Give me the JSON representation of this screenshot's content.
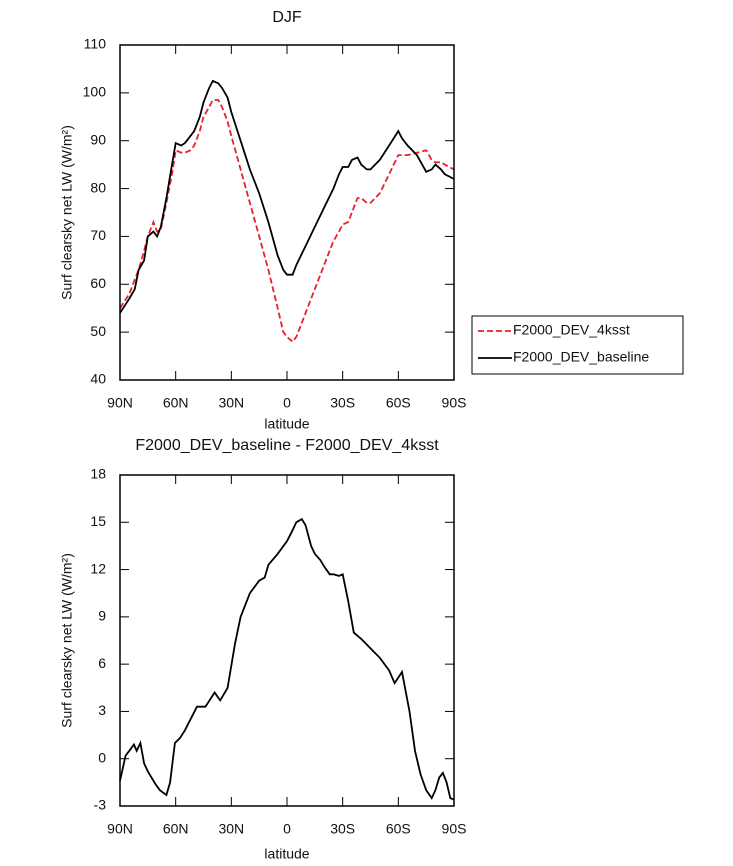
{
  "chart_data": [
    {
      "type": "line",
      "title": "DJF",
      "xlabel": "latitude",
      "ylabel": "Surf clearsky net LW (W/m²)",
      "x": [
        90,
        85,
        82,
        80,
        77,
        75,
        72,
        70,
        68,
        65,
        62,
        60,
        57,
        55,
        52,
        50,
        47,
        45,
        42,
        40,
        37,
        35,
        32,
        30,
        25,
        20,
        15,
        10,
        5,
        2,
        0,
        -3,
        -5,
        -10,
        -15,
        -20,
        -25,
        -28,
        -30,
        -33,
        -35,
        -38,
        -40,
        -43,
        -45,
        -50,
        -55,
        -60,
        -62,
        -65,
        -70,
        -75,
        -78,
        -80,
        -83,
        -85,
        -90
      ],
      "series": [
        {
          "name": "F2000_DEV_4ksst",
          "color": "#e8202a",
          "style": "dashed",
          "values": [
            55,
            58,
            61,
            63,
            67,
            70,
            73,
            71,
            71.5,
            77,
            83,
            88,
            87.5,
            87.5,
            88,
            89,
            92,
            95,
            97,
            98.5,
            98.5,
            97,
            94,
            91,
            84,
            77,
            70,
            63,
            55,
            50,
            49,
            48,
            49,
            54,
            59,
            64,
            69,
            71,
            72.5,
            73,
            75,
            78,
            78,
            77,
            77,
            79,
            83,
            87,
            87,
            87,
            87.5,
            88,
            86,
            85.5,
            85.5,
            85,
            84
          ]
        },
        {
          "name": "F2000_DEV_baseline",
          "color": "#000000",
          "style": "solid",
          "values": [
            54,
            57,
            59,
            63,
            65,
            70,
            71,
            70,
            72,
            78,
            85,
            89.5,
            89,
            89.5,
            91,
            92,
            95,
            98,
            101,
            102.5,
            102,
            101,
            99,
            96,
            90,
            84,
            79,
            73,
            66,
            63,
            62,
            62,
            64,
            68,
            72,
            76,
            80,
            83,
            84.5,
            84.5,
            86,
            86.5,
            85,
            84,
            84,
            86,
            89,
            92,
            90.5,
            89,
            87,
            83.5,
            84,
            85,
            84,
            83,
            82
          ]
        }
      ],
      "xlim": [
        90,
        -90
      ],
      "xticks": [
        {
          "value": 90,
          "label": "90N"
        },
        {
          "value": 60,
          "label": "60N"
        },
        {
          "value": 30,
          "label": "30N"
        },
        0,
        {
          "value": -30,
          "label": "30S"
        },
        {
          "value": -60,
          "label": "60S"
        },
        {
          "value": -90,
          "label": "90S"
        }
      ],
      "ylim": [
        40,
        110
      ],
      "yticks": [
        40,
        50,
        60,
        70,
        80,
        90,
        100,
        110
      ],
      "legend": "right"
    },
    {
      "type": "line",
      "title": "F2000_DEV_baseline - F2000_DEV_4ksst",
      "xlabel": "latitude",
      "ylabel": "Surf clearsky net LW (W/m²)",
      "x": [
        90,
        87,
        85,
        82.5,
        81,
        79,
        77,
        75,
        73,
        71,
        68.5,
        65,
        63,
        60.4,
        57.7,
        55,
        52,
        48.5,
        44,
        39,
        36,
        32,
        28,
        25,
        20,
        15,
        12,
        10,
        5,
        0,
        -3,
        -5,
        -8,
        -10,
        -13,
        -15,
        -18,
        -20,
        -23,
        -25,
        -28,
        -30,
        -33,
        -36,
        -40,
        -45,
        -50,
        -55,
        -58,
        -62,
        -66,
        -69,
        -72,
        -75,
        -78,
        -80,
        -82,
        -84,
        -86,
        -88,
        -90
      ],
      "values": [
        -1.4,
        0.2,
        0.5,
        0.9,
        0.5,
        1,
        -0.3,
        -0.8,
        -1.2,
        -1.6,
        -2,
        -2.3,
        -1.5,
        1,
        1.3,
        1.8,
        2.5,
        3.3,
        3.3,
        4.2,
        3.7,
        4.5,
        7.3,
        9,
        10.5,
        11.3,
        11.5,
        12.3,
        13,
        13.8,
        14.5,
        15,
        15.2,
        14.8,
        13.5,
        13,
        12.6,
        12.2,
        11.7,
        11.7,
        11.6,
        11.7,
        10,
        8,
        7.6,
        7,
        6.4,
        5.6,
        4.8,
        5.5,
        3,
        0.5,
        -1,
        -2,
        -2.5,
        -2,
        -1.2,
        -0.9,
        -1.5,
        -2.5,
        -2.6
      ],
      "color": "#000000",
      "xlim": [
        90,
        -90
      ],
      "xticks": [
        {
          "value": 90,
          "label": "90N"
        },
        {
          "value": 60,
          "label": "60N"
        },
        {
          "value": 30,
          "label": "30N"
        },
        0,
        {
          "value": -30,
          "label": "30S"
        },
        {
          "value": -60,
          "label": "60S"
        },
        {
          "value": -90,
          "label": "90S"
        }
      ],
      "ylim": [
        -3,
        18
      ],
      "yticks": [
        -3,
        0,
        3,
        6,
        9,
        12,
        15,
        18
      ]
    }
  ]
}
